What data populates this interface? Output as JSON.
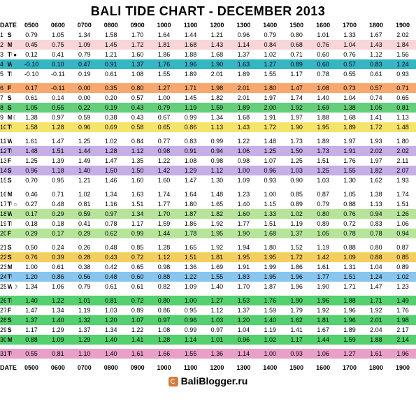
{
  "title": "BALI TIDE CHART - DECEMBER 2013",
  "footer_text": "BaliBlogger.ru",
  "hours": [
    "0500",
    "0600",
    "0700",
    "0800",
    "0900",
    "1000",
    "1100",
    "1200",
    "1300",
    "1400",
    "1500",
    "1600",
    "1700",
    "1800",
    "1900"
  ],
  "col_date": "DATE",
  "row_colors": {
    "white": "#ffffff",
    "pink": "#f8d6d8",
    "teal": "#34b6c4",
    "orange": "#f7a86f",
    "green": "#64cf7a",
    "yellow": "#f6e36a",
    "purple": "#c6aee6",
    "lime": "#b6e59a",
    "gold": "#f4cf5e",
    "blue": "#88c5ef",
    "brightgreen": "#54d06e",
    "pinkrow": "#e9a0c8",
    "tan": "#e4d5b6",
    "header": "#ffffff"
  },
  "rows": [
    {
      "n": "1",
      "dow": "SU",
      "mk": "",
      "c": "white",
      "v": [
        "0.79",
        "1.05",
        "1.34",
        "1.58",
        "1.70",
        "1.64",
        "1.44",
        "1.21",
        "0.96",
        "0.79",
        "0.80",
        "1.01",
        "1.33",
        "1.67",
        "2.02"
      ]
    },
    {
      "n": "2",
      "dow": "M",
      "mk": "",
      "c": "pink",
      "v": [
        "0.45",
        "0.75",
        "1.09",
        "1.45",
        "1.72",
        "1.81",
        "1.68",
        "1.43",
        "1.14",
        "0.84",
        "0.68",
        "0.76",
        "1.04",
        "1.43",
        "1.84"
      ]
    },
    {
      "n": "3",
      "dow": "TU",
      "mk": "●",
      "c": "white",
      "v": [
        "0.12",
        "0.41",
        "0.79",
        "1.21",
        "1.60",
        "1.86",
        "1.88",
        "1.68",
        "1.37",
        "1.02",
        "0.71",
        "0.60",
        "0.76",
        "1.12",
        "1.56"
      ]
    },
    {
      "n": "4",
      "dow": "W",
      "mk": "",
      "c": "teal",
      "v": [
        "-0.10",
        "0.10",
        "0.47",
        "0.91",
        "1.37",
        "1.76",
        "1.96",
        "1.90",
        "1.63",
        "1.27",
        "0.89",
        "0.60",
        "0.57",
        "0.83",
        "1.24"
      ]
    },
    {
      "n": "5",
      "dow": "TH",
      "mk": "",
      "c": "white",
      "v": [
        "-0.10",
        "-0.11",
        "0.19",
        "0.61",
        "1.08",
        "1.55",
        "1.89",
        "2.01",
        "1.89",
        "1.55",
        "1.17",
        "0.78",
        "0.55",
        "0.61",
        "0.93"
      ]
    },
    {
      "n": "6",
      "dow": "F",
      "mk": "",
      "c": "orange",
      "v": [
        "0.17",
        "-0.11",
        "0.00",
        "0.35",
        "0.80",
        "1.27",
        "1.71",
        "1.98",
        "2.01",
        "1.80",
        "1.47",
        "1.08",
        "0.73",
        "0.57",
        "0.71"
      ]
    },
    {
      "n": "7",
      "dow": "SA",
      "mk": "",
      "c": "white",
      "v": [
        "0.61",
        "0.14",
        "0.00",
        "0.20",
        "0.57",
        "1.00",
        "1.45",
        "1.82",
        "2.01",
        "1.97",
        "1.74",
        "1.40",
        "1.04",
        "0.74",
        "0.65"
      ]
    },
    {
      "n": "8",
      "dow": "SU",
      "mk": "",
      "c": "green",
      "v": [
        "1.05",
        "0.55",
        "0.22",
        "0.19",
        "0.43",
        "0.79",
        "1.19",
        "1.59",
        "1.89",
        "2.00",
        "1.92",
        "1.69",
        "1.38",
        "1.05",
        "0.81"
      ]
    },
    {
      "n": "9",
      "dow": "M",
      "mk": "☾",
      "c": "white",
      "v": [
        "1.38",
        "0.97",
        "0.59",
        "0.38",
        "0.43",
        "0.67",
        "0.99",
        "1.34",
        "1.68",
        "1.91",
        "1.97",
        "1.88",
        "1.68",
        "1.41",
        "1.13"
      ]
    },
    {
      "n": "10",
      "dow": "TU",
      "mk": "",
      "c": "yellow",
      "v": [
        "1.58",
        "1.28",
        "0.96",
        "0.69",
        "0.58",
        "0.65",
        "0.86",
        "1.13",
        "1.43",
        "1.72",
        "1.90",
        "1.95",
        "1.89",
        "1.72",
        "1.48"
      ]
    },
    {
      "n": "11",
      "dow": "W",
      "mk": "",
      "c": "white",
      "v": [
        "1.61",
        "1.47",
        "1.25",
        "1.02",
        "0.84",
        "0.77",
        "0.83",
        "0.99",
        "1.22",
        "1.48",
        "1.73",
        "1.89",
        "1.97",
        "1.93",
        "1.80"
      ]
    },
    {
      "n": "12",
      "dow": "TH",
      "mk": "",
      "c": "purple",
      "v": [
        "1.48",
        "1.51",
        "1.44",
        "1.28",
        "1.12",
        "0.98",
        "0.91",
        "0.94",
        "1.06",
        "1.25",
        "1.50",
        "1.73",
        "1.91",
        "2.02",
        "2.02"
      ]
    },
    {
      "n": "13",
      "dow": "F",
      "mk": "",
      "c": "white",
      "v": [
        "1.25",
        "1.39",
        "1.49",
        "1.47",
        "1.35",
        "1.22",
        "1.08",
        "0.98",
        "0.98",
        "1.07",
        "1.25",
        "1.51",
        "1.76",
        "1.97",
        "2.11"
      ]
    },
    {
      "n": "14",
      "dow": "SA",
      "mk": "",
      "c": "purple",
      "v": [
        "0.96",
        "1.18",
        "1.40",
        "1.50",
        "1.50",
        "1.42",
        "1.29",
        "1.12",
        "1.00",
        "0.96",
        "1.03",
        "1.25",
        "1.55",
        "1.82",
        "2.07"
      ]
    },
    {
      "n": "15",
      "dow": "SU",
      "mk": "",
      "c": "white",
      "v": [
        "0.70",
        "0.95",
        "1.21",
        "1.46",
        "1.60",
        "1.60",
        "1.47",
        "1.30",
        "1.09",
        "0.93",
        "0.90",
        "1.03",
        "1.30",
        "1.62",
        "1.93"
      ]
    },
    {
      "n": "16",
      "dow": "M",
      "mk": "",
      "c": "white",
      "v": [
        "0.46",
        "0.71",
        "1.02",
        "1.34",
        "1.63",
        "1.74",
        "1.64",
        "1.48",
        "1.23",
        "1.00",
        "0.85",
        "0.87",
        "1.05",
        "1.38",
        "1.74"
      ]
    },
    {
      "n": "17",
      "dow": "TU",
      "mk": "○",
      "c": "white",
      "v": [
        "0.27",
        "0.48",
        "0.81",
        "1.16",
        "1.51",
        "1.77",
        "1.80",
        "1.65",
        "1.40",
        "1.15",
        "0.89",
        "0.79",
        "0.88",
        "1.13",
        "1.51"
      ]
    },
    {
      "n": "18",
      "dow": "W",
      "mk": "",
      "c": "lime",
      "v": [
        "0.17",
        "0.29",
        "0.59",
        "0.97",
        "1.34",
        "1.70",
        "1.87",
        "1.82",
        "1.60",
        "1.33",
        "1.02",
        "0.80",
        "0.76",
        "0.94",
        "1.26"
      ]
    },
    {
      "n": "19",
      "dow": "TH",
      "mk": "",
      "c": "white",
      "v": [
        "0.18",
        "0.18",
        "0.41",
        "0.78",
        "1.17",
        "1.59",
        "1.86",
        "1.92",
        "1.77",
        "1.51",
        "1.19",
        "0.89",
        "0.72",
        "0.83",
        "1.06"
      ]
    },
    {
      "n": "20",
      "dow": "F",
      "mk": "",
      "c": "lime",
      "v": [
        "0.29",
        "0.17",
        "0.29",
        "0.62",
        "0.99",
        "1.44",
        "1.78",
        "1.95",
        "1.90",
        "1.68",
        "1.37",
        "1.05",
        "0.78",
        "0.78",
        "0.94"
      ]
    },
    {
      "n": "21",
      "dow": "SA",
      "mk": "",
      "c": "white",
      "v": [
        "0.50",
        "0.24",
        "0.26",
        "0.48",
        "0.85",
        "1.28",
        "1.65",
        "1.92",
        "1.94",
        "1.80",
        "1.52",
        "1.19",
        "0.88",
        "0.80",
        "0.87"
      ]
    },
    {
      "n": "22",
      "dow": "SU",
      "mk": "",
      "c": "gold",
      "v": [
        "0.76",
        "0.39",
        "0.28",
        "0.43",
        "0.72",
        "1.12",
        "1.51",
        "1.81",
        "1.95",
        "1.95",
        "1.72",
        "1.42",
        "1.09",
        "0.88",
        "0.85"
      ]
    },
    {
      "n": "23",
      "dow": "M",
      "mk": "",
      "c": "white",
      "v": [
        "1.00",
        "0.61",
        "0.38",
        "0.42",
        "0.65",
        "0.98",
        "1.36",
        "1.69",
        "1.91",
        "1.99",
        "1.86",
        "1.61",
        "1.31",
        "1.04",
        "0.89"
      ]
    },
    {
      "n": "24",
      "dow": "TU",
      "mk": "",
      "c": "blue",
      "v": [
        "1.20",
        "0.86",
        "0.56",
        "0.48",
        "0.60",
        "0.88",
        "1.22",
        "1.55",
        "1.83",
        "1.95",
        "1.96",
        "1.77",
        "1.51",
        "1.24",
        "1.02"
      ]
    },
    {
      "n": "25",
      "dow": "W",
      "mk": "☽",
      "c": "white",
      "v": [
        "1.34",
        "1.06",
        "0.79",
        "0.61",
        "0.61",
        "0.82",
        "1.09",
        "1.40",
        "1.70",
        "1.87",
        "1.96",
        "1.90",
        "1.71",
        "1.47",
        "1.23"
      ]
    },
    {
      "n": "26",
      "dow": "TH",
      "mk": "",
      "c": "brightgreen",
      "v": [
        "1.40",
        "1.22",
        "1.01",
        "0.81",
        "0.72",
        "0.80",
        "1.00",
        "1.27",
        "1.53",
        "1.76",
        "1.90",
        "1.96",
        "1.88",
        "1.71",
        "1.49"
      ]
    },
    {
      "n": "27",
      "dow": "F",
      "mk": "",
      "c": "white",
      "v": [
        "1.47",
        "1.34",
        "1.19",
        "1.03",
        "0.89",
        "0.86",
        "0.95",
        "1.12",
        "1.37",
        "1.59",
        "1.79",
        "1.92",
        "1.96",
        "1.92",
        "1.76"
      ]
    },
    {
      "n": "28",
      "dow": "SA",
      "mk": "",
      "c": "brightgreen",
      "v": [
        "1.37",
        "1.40",
        "1.32",
        "1.20",
        "1.07",
        "0.97",
        "0.96",
        "1.03",
        "1.20",
        "1.40",
        "1.62",
        "1.81",
        "1.96",
        "2.01",
        "1.98"
      ]
    },
    {
      "n": "29",
      "dow": "SU",
      "mk": "",
      "c": "white",
      "v": [
        "1.17",
        "1.29",
        "1.37",
        "1.34",
        "1.22",
        "1.08",
        "0.99",
        "0.97",
        "1.04",
        "1.19",
        "1.41",
        "1.67",
        "1.89",
        "2.04",
        "2.17"
      ]
    },
    {
      "n": "30",
      "dow": "M",
      "mk": "",
      "c": "brightgreen",
      "v": [
        "0.88",
        "1.09",
        "1.29",
        "1.40",
        "1.41",
        "1.28",
        "1.14",
        "1.01",
        "0.96",
        "1.02",
        "1.17",
        "1.44",
        "1.59",
        "1.88",
        "2.14"
      ]
    },
    {
      "n": "31",
      "dow": "TU",
      "mk": "",
      "c": "pinkrow",
      "v": [
        "0.55",
        "0.81",
        "1.10",
        "1.40",
        "1.61",
        "1.66",
        "1.55",
        "1.36",
        "1.14",
        "1.00",
        "0.93",
        "1.06",
        "1.27",
        "1.61",
        "1.96"
      ]
    }
  ],
  "blocks": [
    5,
    5,
    5,
    5,
    5,
    5,
    1
  ]
}
